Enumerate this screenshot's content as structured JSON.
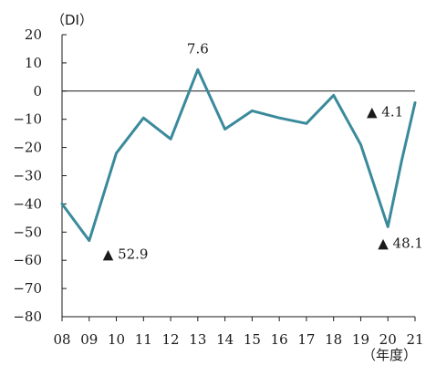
{
  "chart_data": {
    "type": "line",
    "ylabel": "（DI）",
    "xlabel": "（年度）",
    "ylim": [
      -80,
      20
    ],
    "y_ticks": [
      20,
      10,
      0,
      -10,
      -20,
      -30,
      -40,
      -50,
      -60,
      -70,
      -80
    ],
    "y_tick_labels": [
      "20",
      "10",
      "0",
      "−10",
      "−20",
      "−30",
      "−40",
      "−50",
      "−60",
      "−70",
      "−80"
    ],
    "categories": [
      "08",
      "09",
      "10",
      "11",
      "12",
      "13",
      "14",
      "15",
      "16",
      "17",
      "18",
      "19",
      "20",
      "21"
    ],
    "x_positions": [
      0,
      1,
      2,
      3,
      4,
      5,
      6,
      7,
      8,
      9,
      10,
      11,
      12,
      13
    ],
    "x": [
      0,
      1,
      2,
      3,
      4,
      5,
      6,
      7,
      8,
      9,
      10,
      11,
      12,
      12.5,
      13
    ],
    "values": [
      -40,
      -53,
      -22,
      -9.5,
      -17,
      7.6,
      -13.5,
      -7,
      -9.5,
      -11.5,
      -1.5,
      -19,
      -48.1,
      -25,
      -4.1
    ],
    "series_color": "#3a8a9c",
    "zero_line": true,
    "annotations": [
      {
        "text": "7.6",
        "x": 5,
        "y": 7.6,
        "marker": ""
      },
      {
        "text": "52.9",
        "x": 1,
        "y": -53,
        "marker": "▲"
      },
      {
        "text": "4.1",
        "x": 13,
        "y": -4.1,
        "marker": "▲"
      },
      {
        "text": "48.1",
        "x": 12,
        "y": -48.1,
        "marker": "▲"
      }
    ]
  }
}
